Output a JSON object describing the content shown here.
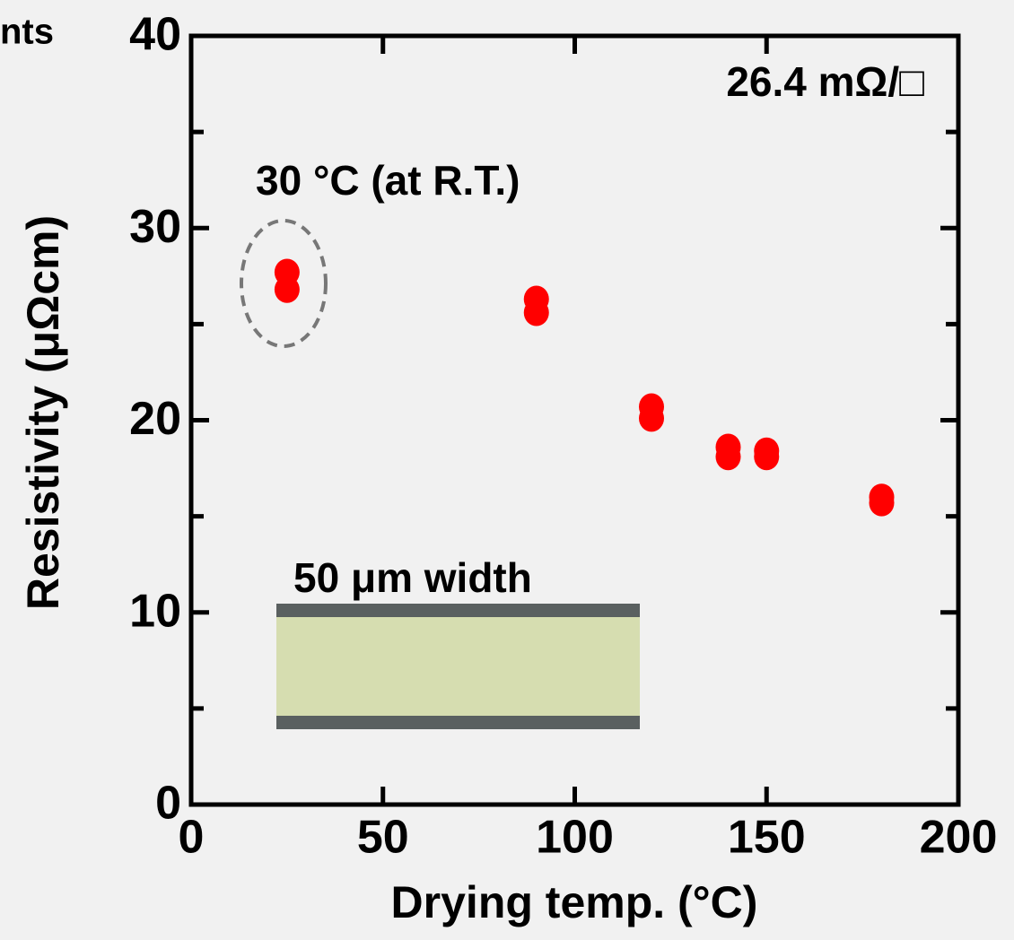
{
  "chart_data": {
    "type": "scatter",
    "corner_text": "nts",
    "xlabel": "Drying temp. (°C)",
    "ylabel": "Resistivity (μΩcm)",
    "annotations": [
      "26.4 mΩ/□",
      "30 °C (at R.T.)",
      "50 μm width"
    ],
    "xlim": [
      0,
      200
    ],
    "ylim": [
      0,
      40
    ],
    "xticks": [
      0,
      50,
      100,
      150,
      200
    ],
    "yticks": [
      0,
      10,
      20,
      30,
      40
    ],
    "yminorticks": [
      5,
      15,
      25,
      35
    ],
    "series": [
      {
        "color": "#ff0000",
        "x": [
          25,
          25,
          90,
          90,
          120,
          120,
          140,
          140,
          150,
          150,
          180,
          180
        ],
        "values": [
          27.7,
          26.8,
          26.3,
          25.6,
          20.7,
          20.1,
          18.6,
          18.1,
          18.4,
          18.1,
          16.0,
          15.7
        ]
      }
    ]
  }
}
